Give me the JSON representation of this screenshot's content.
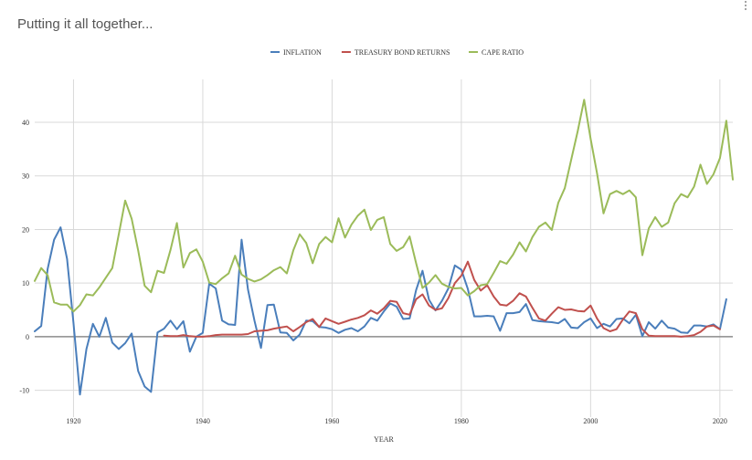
{
  "card": {
    "title": "Putting it all together..."
  },
  "colors": {
    "inflation": "#4a7ebb",
    "treasury": "#c0504d",
    "cape": "#9bbb59",
    "grid": "#d9d9d9",
    "zero_line": "#8c8c8c"
  },
  "icons": {
    "menu": "more-vert-icon"
  },
  "chart_data": {
    "type": "line",
    "title": "",
    "xlabel": "YEAR",
    "ylabel": "",
    "xlim": [
      1914,
      2022
    ],
    "ylim": [
      -15,
      48
    ],
    "x_ticks": [
      1920,
      1940,
      1960,
      1980,
      2000,
      2020
    ],
    "y_ticks": [
      -10,
      0,
      10,
      20,
      30,
      40
    ],
    "grid": true,
    "legend_position": "top",
    "series": [
      {
        "name": "INFLATION",
        "color": "#4a7ebb",
        "points": [
          [
            1914,
            1.0
          ],
          [
            1915,
            2.0
          ],
          [
            1916,
            12.6
          ],
          [
            1917,
            18.1
          ],
          [
            1918,
            20.4
          ],
          [
            1919,
            14.5
          ],
          [
            1920,
            2.6
          ],
          [
            1921,
            -10.8
          ],
          [
            1922,
            -2.3
          ],
          [
            1923,
            2.4
          ],
          [
            1924,
            0.0
          ],
          [
            1925,
            3.5
          ],
          [
            1926,
            -1.1
          ],
          [
            1927,
            -2.3
          ],
          [
            1928,
            -1.2
          ],
          [
            1929,
            0.6
          ],
          [
            1930,
            -6.4
          ],
          [
            1931,
            -9.3
          ],
          [
            1932,
            -10.3
          ],
          [
            1933,
            0.8
          ],
          [
            1934,
            1.5
          ],
          [
            1935,
            3.0
          ],
          [
            1936,
            1.4
          ],
          [
            1937,
            2.9
          ],
          [
            1938,
            -2.8
          ],
          [
            1939,
            0.0
          ],
          [
            1940,
            0.7
          ],
          [
            1941,
            9.9
          ],
          [
            1942,
            9.0
          ],
          [
            1943,
            3.0
          ],
          [
            1944,
            2.3
          ],
          [
            1945,
            2.2
          ],
          [
            1946,
            18.1
          ],
          [
            1947,
            8.8
          ],
          [
            1948,
            3.0
          ],
          [
            1949,
            -2.1
          ],
          [
            1950,
            5.9
          ],
          [
            1951,
            6.0
          ],
          [
            1952,
            0.8
          ],
          [
            1953,
            0.7
          ],
          [
            1954,
            -0.7
          ],
          [
            1955,
            0.4
          ],
          [
            1956,
            3.0
          ],
          [
            1957,
            2.9
          ],
          [
            1958,
            1.8
          ],
          [
            1959,
            1.7
          ],
          [
            1960,
            1.4
          ],
          [
            1961,
            0.7
          ],
          [
            1962,
            1.3
          ],
          [
            1963,
            1.6
          ],
          [
            1964,
            1.0
          ],
          [
            1965,
            1.9
          ],
          [
            1966,
            3.5
          ],
          [
            1967,
            3.0
          ],
          [
            1968,
            4.7
          ],
          [
            1969,
            6.2
          ],
          [
            1970,
            5.6
          ],
          [
            1971,
            3.3
          ],
          [
            1972,
            3.4
          ],
          [
            1973,
            8.7
          ],
          [
            1974,
            12.3
          ],
          [
            1975,
            6.9
          ],
          [
            1976,
            4.9
          ],
          [
            1977,
            6.7
          ],
          [
            1978,
            9.0
          ],
          [
            1979,
            13.3
          ],
          [
            1980,
            12.5
          ],
          [
            1981,
            8.9
          ],
          [
            1982,
            3.8
          ],
          [
            1983,
            3.8
          ],
          [
            1984,
            3.9
          ],
          [
            1985,
            3.8
          ],
          [
            1986,
            1.1
          ],
          [
            1987,
            4.4
          ],
          [
            1988,
            4.4
          ],
          [
            1989,
            4.6
          ],
          [
            1990,
            6.1
          ],
          [
            1991,
            3.1
          ],
          [
            1992,
            2.9
          ],
          [
            1993,
            2.8
          ],
          [
            1994,
            2.7
          ],
          [
            1995,
            2.5
          ],
          [
            1996,
            3.3
          ],
          [
            1997,
            1.7
          ],
          [
            1998,
            1.6
          ],
          [
            1999,
            2.7
          ],
          [
            2000,
            3.4
          ],
          [
            2001,
            1.6
          ],
          [
            2002,
            2.4
          ],
          [
            2003,
            1.9
          ],
          [
            2004,
            3.3
          ],
          [
            2005,
            3.4
          ],
          [
            2006,
            2.5
          ],
          [
            2007,
            4.1
          ],
          [
            2008,
            0.1
          ],
          [
            2009,
            2.7
          ],
          [
            2010,
            1.5
          ],
          [
            2011,
            3.0
          ],
          [
            2012,
            1.7
          ],
          [
            2013,
            1.5
          ],
          [
            2014,
            0.8
          ],
          [
            2015,
            0.7
          ],
          [
            2016,
            2.1
          ],
          [
            2017,
            2.1
          ],
          [
            2018,
            1.9
          ],
          [
            2019,
            2.3
          ],
          [
            2020,
            1.4
          ],
          [
            2021,
            7.0
          ]
        ]
      },
      {
        "name": "TREASURY BOND RETURNS",
        "color": "#c0504d",
        "points": [
          [
            1934,
            0.2
          ],
          [
            1935,
            0.1
          ],
          [
            1936,
            0.1
          ],
          [
            1937,
            0.3
          ],
          [
            1938,
            0.1
          ],
          [
            1939,
            0.0
          ],
          [
            1940,
            0.0
          ],
          [
            1941,
            0.1
          ],
          [
            1942,
            0.3
          ],
          [
            1943,
            0.4
          ],
          [
            1944,
            0.4
          ],
          [
            1945,
            0.4
          ],
          [
            1946,
            0.4
          ],
          [
            1947,
            0.5
          ],
          [
            1948,
            1.0
          ],
          [
            1949,
            1.1
          ],
          [
            1950,
            1.2
          ],
          [
            1951,
            1.5
          ],
          [
            1952,
            1.7
          ],
          [
            1953,
            1.9
          ],
          [
            1954,
            1.0
          ],
          [
            1955,
            1.8
          ],
          [
            1956,
            2.7
          ],
          [
            1957,
            3.3
          ],
          [
            1958,
            1.8
          ],
          [
            1959,
            3.4
          ],
          [
            1960,
            2.9
          ],
          [
            1961,
            2.4
          ],
          [
            1962,
            2.8
          ],
          [
            1963,
            3.2
          ],
          [
            1964,
            3.5
          ],
          [
            1965,
            4.0
          ],
          [
            1966,
            4.9
          ],
          [
            1967,
            4.3
          ],
          [
            1968,
            5.3
          ],
          [
            1969,
            6.7
          ],
          [
            1970,
            6.5
          ],
          [
            1971,
            4.4
          ],
          [
            1972,
            4.1
          ],
          [
            1973,
            7.0
          ],
          [
            1974,
            7.9
          ],
          [
            1975,
            5.8
          ],
          [
            1976,
            5.0
          ],
          [
            1977,
            5.3
          ],
          [
            1978,
            7.2
          ],
          [
            1979,
            10.0
          ],
          [
            1980,
            11.4
          ],
          [
            1981,
            14.0
          ],
          [
            1982,
            10.6
          ],
          [
            1983,
            8.6
          ],
          [
            1984,
            9.6
          ],
          [
            1985,
            7.5
          ],
          [
            1986,
            6.0
          ],
          [
            1987,
            5.8
          ],
          [
            1988,
            6.7
          ],
          [
            1989,
            8.1
          ],
          [
            1990,
            7.5
          ],
          [
            1991,
            5.4
          ],
          [
            1992,
            3.4
          ],
          [
            1993,
            3.0
          ],
          [
            1994,
            4.3
          ],
          [
            1995,
            5.5
          ],
          [
            1996,
            5.0
          ],
          [
            1997,
            5.1
          ],
          [
            1998,
            4.8
          ],
          [
            1999,
            4.7
          ],
          [
            2000,
            5.8
          ],
          [
            2001,
            3.4
          ],
          [
            2002,
            1.6
          ],
          [
            2003,
            1.0
          ],
          [
            2004,
            1.4
          ],
          [
            2005,
            3.2
          ],
          [
            2006,
            4.7
          ],
          [
            2007,
            4.4
          ],
          [
            2008,
            1.4
          ],
          [
            2009,
            0.2
          ],
          [
            2010,
            0.1
          ],
          [
            2011,
            0.1
          ],
          [
            2012,
            0.1
          ],
          [
            2013,
            0.1
          ],
          [
            2014,
            0.0
          ],
          [
            2015,
            0.1
          ],
          [
            2016,
            0.3
          ],
          [
            2017,
            0.9
          ],
          [
            2018,
            1.9
          ],
          [
            2019,
            2.1
          ],
          [
            2020,
            1.4
          ]
        ]
      },
      {
        "name": "CAPE RATIO",
        "color": "#9bbb59",
        "points": [
          [
            1914,
            10.4
          ],
          [
            1915,
            12.8
          ],
          [
            1916,
            11.5
          ],
          [
            1917,
            6.4
          ],
          [
            1918,
            6.0
          ],
          [
            1919,
            6.0
          ],
          [
            1920,
            4.7
          ],
          [
            1921,
            5.9
          ],
          [
            1922,
            7.9
          ],
          [
            1923,
            7.7
          ],
          [
            1924,
            9.2
          ],
          [
            1925,
            11.0
          ],
          [
            1926,
            12.8
          ],
          [
            1927,
            19.1
          ],
          [
            1928,
            25.4
          ],
          [
            1929,
            22.0
          ],
          [
            1930,
            16.1
          ],
          [
            1931,
            9.5
          ],
          [
            1932,
            8.3
          ],
          [
            1933,
            12.3
          ],
          [
            1934,
            11.9
          ],
          [
            1935,
            16.2
          ],
          [
            1936,
            21.2
          ],
          [
            1937,
            12.9
          ],
          [
            1938,
            15.6
          ],
          [
            1939,
            16.3
          ],
          [
            1940,
            14.0
          ],
          [
            1941,
            10.1
          ],
          [
            1942,
            9.8
          ],
          [
            1943,
            10.9
          ],
          [
            1944,
            11.8
          ],
          [
            1945,
            15.1
          ],
          [
            1946,
            11.6
          ],
          [
            1947,
            10.8
          ],
          [
            1948,
            10.3
          ],
          [
            1949,
            10.7
          ],
          [
            1950,
            11.5
          ],
          [
            1951,
            12.4
          ],
          [
            1952,
            13.0
          ],
          [
            1953,
            11.8
          ],
          [
            1954,
            16.1
          ],
          [
            1955,
            19.1
          ],
          [
            1956,
            17.5
          ],
          [
            1957,
            13.7
          ],
          [
            1958,
            17.3
          ],
          [
            1959,
            18.6
          ],
          [
            1960,
            17.6
          ],
          [
            1961,
            22.1
          ],
          [
            1962,
            18.5
          ],
          [
            1963,
            20.9
          ],
          [
            1964,
            22.6
          ],
          [
            1965,
            23.7
          ],
          [
            1966,
            19.9
          ],
          [
            1967,
            21.8
          ],
          [
            1968,
            22.3
          ],
          [
            1969,
            17.3
          ],
          [
            1970,
            16.0
          ],
          [
            1971,
            16.7
          ],
          [
            1972,
            18.7
          ],
          [
            1973,
            13.7
          ],
          [
            1974,
            9.1
          ],
          [
            1975,
            10.1
          ],
          [
            1976,
            11.5
          ],
          [
            1977,
            9.9
          ],
          [
            1978,
            9.3
          ],
          [
            1979,
            9.0
          ],
          [
            1980,
            9.1
          ],
          [
            1981,
            7.7
          ],
          [
            1982,
            8.5
          ],
          [
            1983,
            9.6
          ],
          [
            1984,
            9.8
          ],
          [
            1985,
            11.9
          ],
          [
            1986,
            14.1
          ],
          [
            1987,
            13.6
          ],
          [
            1988,
            15.3
          ],
          [
            1989,
            17.6
          ],
          [
            1990,
            15.9
          ],
          [
            1991,
            18.6
          ],
          [
            1992,
            20.5
          ],
          [
            1993,
            21.3
          ],
          [
            1994,
            19.9
          ],
          [
            1995,
            25.0
          ],
          [
            1996,
            27.7
          ],
          [
            1997,
            33.0
          ],
          [
            1998,
            38.3
          ],
          [
            1999,
            44.2
          ],
          [
            2000,
            36.9
          ],
          [
            2001,
            30.5
          ],
          [
            2002,
            23.0
          ],
          [
            2003,
            26.6
          ],
          [
            2004,
            27.2
          ],
          [
            2005,
            26.6
          ],
          [
            2006,
            27.3
          ],
          [
            2007,
            26.0
          ],
          [
            2008,
            15.2
          ],
          [
            2009,
            20.2
          ],
          [
            2010,
            22.3
          ],
          [
            2011,
            20.5
          ],
          [
            2012,
            21.3
          ],
          [
            2013,
            24.9
          ],
          [
            2014,
            26.6
          ],
          [
            2015,
            26.0
          ],
          [
            2016,
            28.0
          ],
          [
            2017,
            32.1
          ],
          [
            2018,
            28.5
          ],
          [
            2019,
            30.3
          ],
          [
            2020,
            33.3
          ],
          [
            2021,
            40.3
          ],
          [
            2022,
            29.3
          ]
        ]
      }
    ]
  }
}
